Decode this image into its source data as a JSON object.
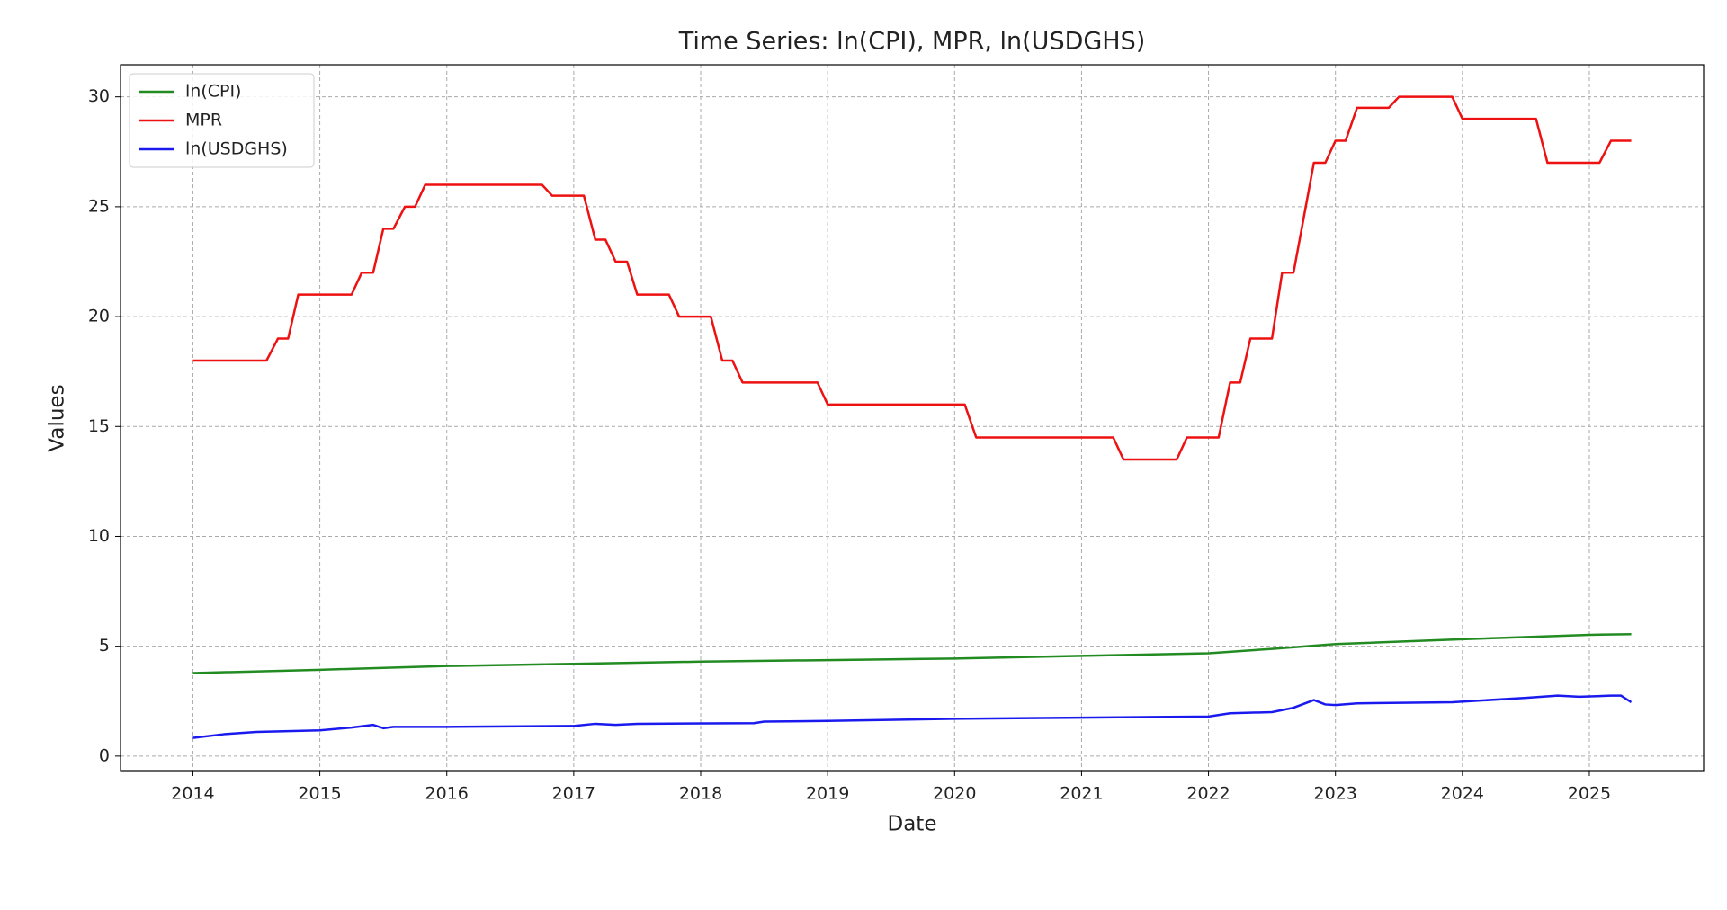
{
  "chart_data": {
    "type": "line",
    "title": "Time Series: ln(CPI), MPR, ln(USDGHS)",
    "x_label": "Date",
    "y_label": "Values",
    "xlim": [
      2013.43,
      2025.9
    ],
    "ylim": [
      -0.66,
      31.46
    ],
    "xticks": [
      2014,
      2015,
      2016,
      2017,
      2018,
      2019,
      2020,
      2021,
      2022,
      2023,
      2024,
      2025
    ],
    "yticks": [
      0,
      5,
      10,
      15,
      20,
      25,
      30
    ],
    "grid": true,
    "legend": "upper left",
    "series": [
      {
        "name": "ln(CPI)",
        "color": "#228b22",
        "x": [
          2014,
          2015,
          2016,
          2017,
          2018,
          2019,
          2020,
          2021,
          2022,
          2022.5,
          2023,
          2024,
          2025,
          2025.33
        ],
        "values": [
          3.78,
          3.93,
          4.1,
          4.2,
          4.3,
          4.37,
          4.44,
          4.56,
          4.68,
          4.88,
          5.1,
          5.32,
          5.52,
          5.55
        ]
      },
      {
        "name": "MPR",
        "color": "#ee1111",
        "x": [
          2014,
          2014.58,
          2014.67,
          2014.75,
          2014.83,
          2015.25,
          2015.33,
          2015.42,
          2015.5,
          2015.58,
          2015.67,
          2015.75,
          2015.83,
          2016.75,
          2016.83,
          2017.08,
          2017.17,
          2017.25,
          2017.33,
          2017.42,
          2017.5,
          2017.75,
          2017.83,
          2018.08,
          2018.17,
          2018.25,
          2018.33,
          2018.92,
          2019.0,
          2020.08,
          2020.17,
          2021.25,
          2021.33,
          2021.75,
          2021.83,
          2022.08,
          2022.17,
          2022.25,
          2022.33,
          2022.5,
          2022.58,
          2022.67,
          2022.75,
          2022.83,
          2022.92,
          2023.0,
          2023.08,
          2023.17,
          2023.42,
          2023.5,
          2023.92,
          2024.0,
          2024.58,
          2024.67,
          2025.08,
          2025.17,
          2025.33
        ],
        "values": [
          18,
          18,
          19,
          19,
          21,
          21,
          22,
          22,
          24,
          24,
          25,
          25,
          26,
          26,
          25.5,
          25.5,
          23.5,
          23.5,
          22.5,
          22.5,
          21,
          21,
          20,
          20,
          18,
          18,
          17,
          17,
          16,
          16,
          14.5,
          14.5,
          13.5,
          13.5,
          14.5,
          14.5,
          17,
          17,
          19,
          19,
          22,
          22,
          24.5,
          27,
          27,
          28,
          28,
          29.5,
          29.5,
          30,
          30,
          29,
          29,
          27,
          27,
          28,
          28
        ]
      },
      {
        "name": "ln(USDGHS)",
        "color": "#1a1aee",
        "x": [
          2014,
          2014.25,
          2014.5,
          2015,
          2015.25,
          2015.42,
          2015.5,
          2015.58,
          2016,
          2017,
          2017.17,
          2017.33,
          2017.5,
          2018.42,
          2018.5,
          2019,
          2020,
          2021,
          2022,
          2022.17,
          2022.5,
          2022.67,
          2022.83,
          2022.92,
          2023,
          2023.17,
          2023.92,
          2024.5,
          2024.75,
          2024.92,
          2025.17,
          2025.25,
          2025.33
        ],
        "values": [
          0.83,
          1.0,
          1.1,
          1.17,
          1.3,
          1.42,
          1.27,
          1.33,
          1.33,
          1.37,
          1.47,
          1.42,
          1.47,
          1.5,
          1.57,
          1.6,
          1.7,
          1.75,
          1.8,
          1.95,
          2.0,
          2.2,
          2.55,
          2.35,
          2.32,
          2.4,
          2.45,
          2.65,
          2.75,
          2.7,
          2.75,
          2.75,
          2.45
        ]
      }
    ]
  }
}
